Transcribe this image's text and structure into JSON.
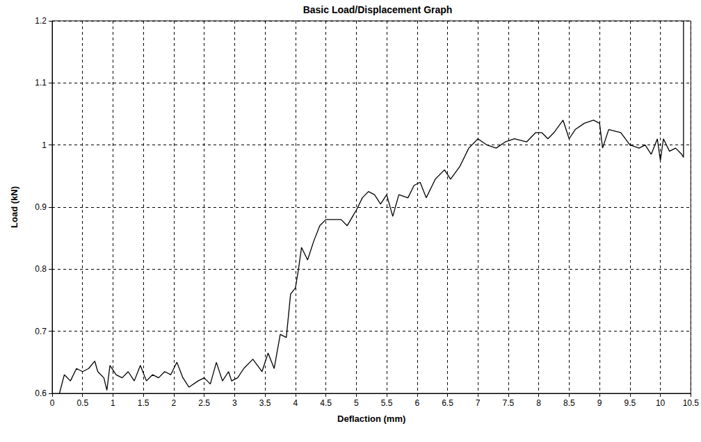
{
  "chart_data": {
    "type": "line",
    "title": "Basic Load/Displacement Graph",
    "x_label": "Deflaction (mm)",
    "y_label": "Load (kN)",
    "x": [
      0.12,
      0.2,
      0.3,
      0.4,
      0.5,
      0.6,
      0.7,
      0.75,
      0.85,
      0.9,
      0.95,
      1.05,
      1.15,
      1.25,
      1.35,
      1.45,
      1.55,
      1.65,
      1.75,
      1.85,
      1.95,
      2.05,
      2.15,
      2.25,
      2.4,
      2.5,
      2.6,
      2.7,
      2.8,
      2.9,
      2.95,
      3.05,
      3.15,
      3.3,
      3.45,
      3.55,
      3.65,
      3.75,
      3.85,
      3.92,
      4.0,
      4.05,
      4.1,
      4.2,
      4.3,
      4.4,
      4.5,
      4.6,
      4.75,
      4.85,
      5.0,
      5.1,
      5.2,
      5.3,
      5.4,
      5.5,
      5.6,
      5.7,
      5.85,
      5.95,
      6.05,
      6.15,
      6.3,
      6.45,
      6.55,
      6.7,
      6.85,
      7.0,
      7.15,
      7.3,
      7.45,
      7.6,
      7.8,
      7.95,
      8.05,
      8.15,
      8.25,
      8.4,
      8.5,
      8.6,
      8.75,
      8.9,
      9.0,
      9.05,
      9.15,
      9.35,
      9.5,
      9.65,
      9.75,
      9.85,
      9.95,
      10.0,
      10.05,
      10.15,
      10.25,
      10.35,
      10.38,
      10.38
    ],
    "values": [
      0.6,
      0.63,
      0.62,
      0.64,
      0.635,
      0.64,
      0.652,
      0.635,
      0.625,
      0.605,
      0.645,
      0.63,
      0.625,
      0.635,
      0.62,
      0.645,
      0.62,
      0.63,
      0.625,
      0.635,
      0.63,
      0.65,
      0.625,
      0.61,
      0.62,
      0.625,
      0.615,
      0.65,
      0.62,
      0.635,
      0.62,
      0.625,
      0.64,
      0.655,
      0.635,
      0.665,
      0.64,
      0.695,
      0.69,
      0.76,
      0.77,
      0.8,
      0.835,
      0.815,
      0.845,
      0.87,
      0.88,
      0.88,
      0.88,
      0.87,
      0.895,
      0.915,
      0.925,
      0.92,
      0.905,
      0.92,
      0.885,
      0.92,
      0.915,
      0.935,
      0.94,
      0.915,
      0.945,
      0.96,
      0.945,
      0.965,
      0.995,
      1.01,
      1.0,
      0.995,
      1.005,
      1.01,
      1.005,
      1.02,
      1.02,
      1.01,
      1.02,
      1.04,
      1.01,
      1.025,
      1.035,
      1.04,
      1.035,
      0.995,
      1.025,
      1.02,
      1.0,
      0.995,
      1.0,
      0.985,
      1.01,
      0.975,
      1.01,
      0.99,
      0.995,
      0.985,
      0.98,
      1.2
    ],
    "color": "#000000",
    "xlim": [
      0,
      10.5
    ],
    "xticks": [
      0,
      0.5,
      1,
      1.5,
      2,
      2.5,
      3,
      3.5,
      4,
      4.5,
      5,
      5.5,
      6,
      6.5,
      7,
      7.5,
      8,
      8.5,
      9,
      9.5,
      10,
      10.5
    ],
    "ylim": [
      0.6,
      1.2
    ],
    "yticks": [
      0.6,
      0.7,
      0.8,
      0.9,
      1,
      1.1,
      1.2
    ],
    "grid": true
  }
}
